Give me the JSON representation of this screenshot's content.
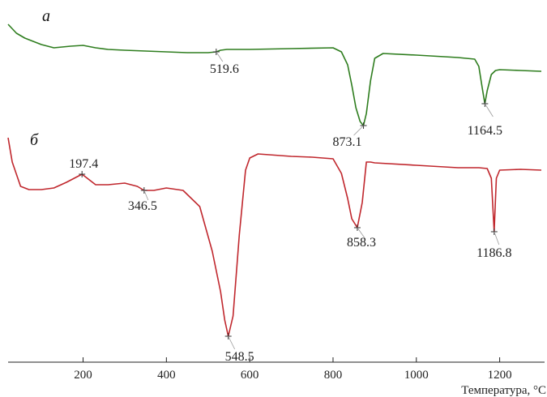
{
  "chart_data": {
    "type": "line",
    "xlabel": "Температура, °C",
    "xlim": [
      20,
      1300
    ],
    "x_ticks": [
      200,
      400,
      600,
      800,
      1000,
      1200
    ],
    "grid": false,
    "legend": "none",
    "y_axis": "hidden",
    "series": [
      {
        "panel": "а",
        "color": "#2e7d1e",
        "offset": 0,
        "x": [
          20,
          40,
          60,
          80,
          100,
          130,
          170,
          200,
          230,
          260,
          300,
          350,
          400,
          450,
          500,
          510,
          519.6,
          530,
          545,
          600,
          700,
          800,
          820,
          835,
          845,
          855,
          865,
          873.1,
          880,
          890,
          900,
          920,
          1000,
          1100,
          1140,
          1150,
          1158,
          1164.5,
          1170,
          1180,
          1190,
          1200,
          1250,
          1300
        ],
        "y": [
          30,
          41,
          47,
          51,
          55,
          59,
          57,
          56,
          59,
          61,
          62,
          63,
          64,
          65,
          65,
          64.5,
          64,
          62,
          61,
          61,
          60,
          59,
          64,
          80,
          105,
          133,
          150,
          155,
          140,
          100,
          72,
          66,
          68,
          71,
          73,
          82,
          108,
          128,
          112,
          92,
          87,
          86,
          87,
          88
        ]
      },
      {
        "panel": "б",
        "color": "#c0272d",
        "offset": 0,
        "x": [
          20,
          30,
          50,
          70,
          100,
          130,
          160,
          197.4,
          230,
          260,
          300,
          330,
          346.5,
          370,
          400,
          440,
          480,
          510,
          530,
          540,
          548.5,
          560,
          575,
          590,
          600,
          620,
          700,
          750,
          800,
          820,
          835,
          845,
          858.3,
          870,
          880,
          890,
          900,
          1000,
          1100,
          1150,
          1170,
          1180,
          1186.8,
          1192,
          1200,
          1250,
          1300
        ],
        "y": [
          170,
          200,
          230,
          234,
          234,
          232,
          225,
          215,
          228,
          228,
          226,
          230,
          235,
          235,
          232,
          235,
          255,
          310,
          360,
          395,
          415,
          390,
          290,
          210,
          195,
          190,
          193,
          194,
          196,
          214,
          245,
          270,
          281,
          250,
          200,
          200,
          201,
          204,
          207,
          207,
          208,
          220,
          286,
          220,
          210,
          209,
          210
        ]
      }
    ],
    "annotations": [
      {
        "text": "519.6",
        "x": 519.6,
        "y": 64,
        "series": 0
      },
      {
        "text": "873.1",
        "x": 873.1,
        "y": 155,
        "series": 0
      },
      {
        "text": "1164.5",
        "x": 1164.5,
        "y": 128,
        "series": 0
      },
      {
        "text": "197.4",
        "x": 197.4,
        "y": 215,
        "series": 1
      },
      {
        "text": "346.5",
        "x": 346.5,
        "y": 235,
        "series": 1
      },
      {
        "text": "548.5",
        "x": 548.5,
        "y": 415,
        "series": 1
      },
      {
        "text": "858.3",
        "x": 858.3,
        "y": 281,
        "series": 1
      },
      {
        "text": "1186.8",
        "x": 1186.8,
        "y": 286,
        "series": 1
      }
    ]
  }
}
